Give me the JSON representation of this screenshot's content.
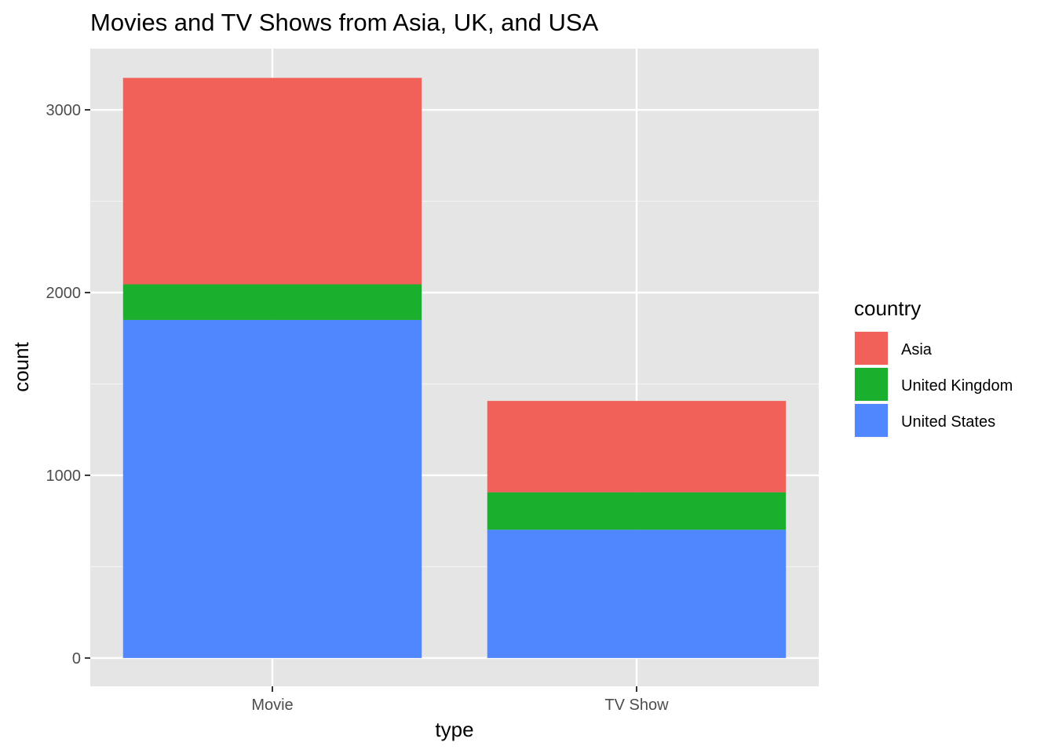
{
  "chart_data": {
    "type": "bar",
    "stacked": true,
    "title": "Movies and TV Shows from Asia, UK, and USA",
    "xlabel": "type",
    "ylabel": "count",
    "categories": [
      "Movie",
      "TV Show"
    ],
    "series": [
      {
        "name": "United States",
        "values": [
          1850,
          702
        ],
        "color": "#5087FF"
      },
      {
        "name": "United Kingdom",
        "values": [
          195,
          205
        ],
        "color": "#1AB02E"
      },
      {
        "name": "Asia",
        "values": [
          1130,
          500
        ],
        "color": "#F2605A"
      }
    ],
    "ylim": [
      -155,
      3335
    ],
    "yticks": [
      0,
      1000,
      2000,
      3000
    ],
    "ytick_labels": [
      "0",
      "1000",
      "2000",
      "3000"
    ],
    "grid": true,
    "panel_background": "#E5E5E5",
    "legend": {
      "title": "country",
      "placement": "right",
      "entries": [
        "Asia",
        "United Kingdom",
        "United States"
      ]
    }
  }
}
